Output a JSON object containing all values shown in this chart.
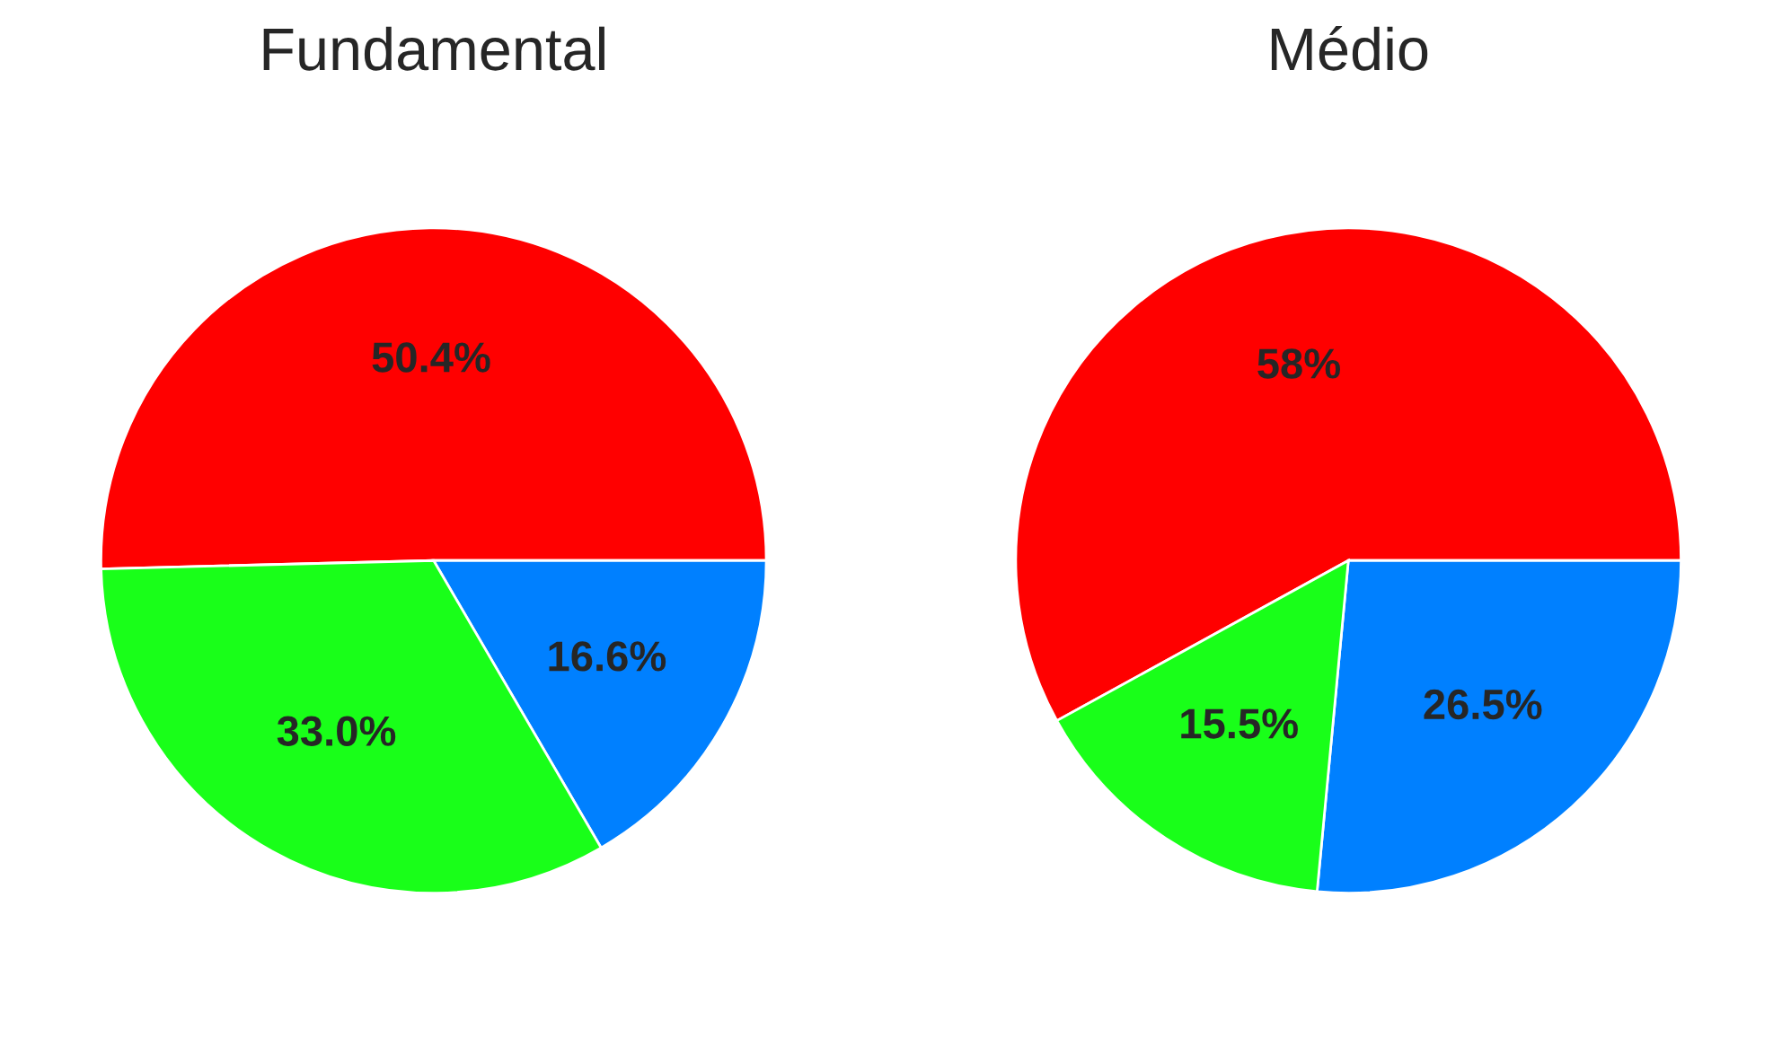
{
  "chart_data": [
    {
      "type": "pie",
      "title": "Fundamental",
      "categories": [
        null,
        null,
        null
      ],
      "values": [
        50.4,
        16.6,
        33.0
      ],
      "colors": [
        "#ff0000",
        "#0080ff",
        "#19ff19"
      ],
      "value_labels": [
        "50.4%",
        "16.6%",
        "33.0%"
      ]
    },
    {
      "type": "pie",
      "title": "Médio",
      "categories": [
        null,
        null,
        null
      ],
      "values": [
        58,
        26.5,
        15.5
      ],
      "colors": [
        "#ff0000",
        "#0080ff",
        "#19ff19"
      ],
      "value_labels": [
        "58%",
        "26.5%",
        "15.5%"
      ]
    }
  ]
}
